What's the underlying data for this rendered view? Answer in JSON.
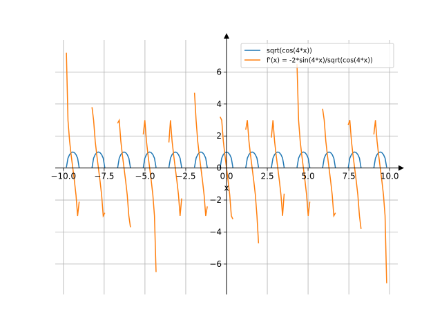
{
  "chart_data": {
    "type": "line",
    "title": "",
    "xlabel": "x",
    "ylabel": "",
    "xlim": [
      -10.5,
      10.5
    ],
    "ylim": [
      -7.9,
      8.0
    ],
    "grid": true,
    "legend_position": "top-right",
    "x_ticks": [
      -10.0,
      -7.5,
      -5.0,
      -2.5,
      0.0,
      2.5,
      5.0,
      7.5,
      10.0
    ],
    "x_tick_labels": [
      "−10.0",
      "−7.5",
      "−5.0",
      "−2.5",
      "0.0",
      "2.5",
      "5.0",
      "7.5",
      "10.0"
    ],
    "y_ticks": [
      -6,
      -4,
      -2,
      0,
      2,
      4,
      6
    ],
    "y_tick_labels": [
      "−6",
      "−4",
      "−2",
      "0",
      "2",
      "4",
      "6"
    ],
    "domain_intervals": [
      [
        -9.817,
        -9.032
      ],
      [
        -8.247,
        -7.461
      ],
      [
        -6.676,
        -5.89
      ],
      [
        -5.105,
        -4.32
      ],
      [
        -3.534,
        -2.749
      ],
      [
        -1.963,
        -1.178
      ],
      [
        -0.393,
        0.393
      ],
      [
        1.178,
        1.963
      ],
      [
        2.749,
        3.534
      ],
      [
        4.32,
        5.105
      ],
      [
        5.89,
        6.676
      ],
      [
        7.461,
        8.247
      ],
      [
        9.032,
        9.817
      ]
    ],
    "series": [
      {
        "name": "sqrt(cos(4*x))",
        "color": "#1f77b4",
        "expression": "sqrt(cos(4*x))"
      },
      {
        "name": "f'(x) = -2*sin(4*x)/sqrt(cos(4*x))",
        "color": "#ff7f0e",
        "expression": "-2*sin(4*x)/sqrt(cos(4*x))",
        "segment_endpoints": [
          [
            7.2,
            -2.1
          ],
          [
            3.8,
            -2.8
          ],
          [
            2.8,
            -3.7
          ],
          [
            2.1,
            -6.5
          ],
          [
            1.6,
            -1.9
          ],
          [
            4.7,
            -2.4
          ],
          [
            3.2,
            -3.2
          ],
          [
            2.4,
            -4.7
          ],
          [
            1.9,
            -1.6
          ],
          [
            6.5,
            -2.1
          ],
          [
            3.7,
            -2.8
          ],
          [
            2.7,
            -3.8
          ],
          [
            2.1,
            -7.2
          ]
        ]
      }
    ]
  }
}
